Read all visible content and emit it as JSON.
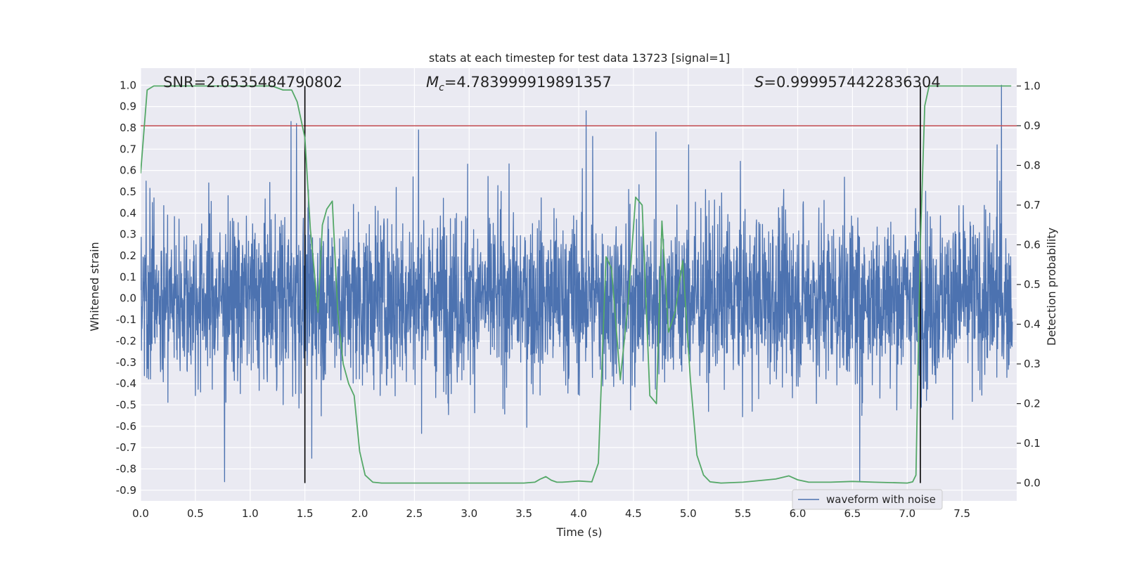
{
  "chart_data": {
    "type": "line",
    "title": "stats at each timestep for test data 13723 [signal=1]",
    "xlabel": "Time (s)",
    "ylabel_left": "Whitened strain",
    "ylabel_right": "Detection probability",
    "xlim": [
      0.0,
      8.0
    ],
    "ylim_left": [
      -0.95,
      1.08
    ],
    "ylim_right": [
      -0.045,
      1.045
    ],
    "x_ticks": [
      "0.0",
      "0.5",
      "1.0",
      "1.5",
      "2.0",
      "2.5",
      "3.0",
      "3.5",
      "4.0",
      "4.5",
      "5.0",
      "5.5",
      "6.0",
      "6.5",
      "7.0",
      "7.5"
    ],
    "y_ticks_left": [
      "1.0",
      "0.9",
      "0.8",
      "0.7",
      "0.6",
      "0.5",
      "0.4",
      "0.3",
      "0.2",
      "0.1",
      "0.0",
      "-0.1",
      "-0.2",
      "-0.3",
      "-0.4",
      "-0.5",
      "-0.6",
      "-0.7",
      "-0.8",
      "-0.9"
    ],
    "y_ticks_right": [
      "1.0",
      "0.9",
      "0.8",
      "0.7",
      "0.6",
      "0.5",
      "0.4",
      "0.3",
      "0.2",
      "0.1",
      "0.0"
    ],
    "grid": true,
    "legend": {
      "location": "lower-center-right",
      "entries": [
        "waveform with noise"
      ]
    },
    "annotations": {
      "snr": "SNR=2.6535484790802",
      "mc_symbol": "M",
      "mc_sub": "c",
      "mc_value": "=4.783999919891357",
      "s_symbol": "S",
      "s_value": "=0.9999574422836304"
    },
    "threshold_line": {
      "axis": "right",
      "y": 0.9,
      "color": "#c44e52"
    },
    "vertical_lines": {
      "x": [
        1.5,
        7.12
      ],
      "y_range_right": [
        0.0,
        1.0
      ],
      "color": "#000000"
    },
    "series": [
      {
        "name": "waveform with noise",
        "axis": "left",
        "color": "#4c72b0",
        "peak_x": [
          0.05,
          0.77,
          1.38,
          1.43,
          1.57,
          2.5,
          2.55,
          3.0,
          4.09,
          4.15,
          4.73,
          5.03,
          6.6,
          7.86,
          7.9
        ],
        "peak_y": [
          0.55,
          -0.86,
          0.83,
          0.82,
          -0.75,
          0.57,
          0.79,
          0.63,
          0.88,
          0.76,
          0.78,
          0.72,
          -0.86,
          0.72,
          1.0
        ]
      },
      {
        "name": "",
        "axis": "right",
        "color": "#55a868",
        "x": [
          0.0,
          0.06,
          0.12,
          0.3,
          0.6,
          0.9,
          1.2,
          1.3,
          1.38,
          1.43,
          1.5,
          1.55,
          1.6,
          1.62,
          1.66,
          1.7,
          1.75,
          1.8,
          1.85,
          1.9,
          1.95,
          2.0,
          2.05,
          2.12,
          2.2,
          2.5,
          3.0,
          3.5,
          3.6,
          3.65,
          3.7,
          3.75,
          3.8,
          3.85,
          3.9,
          4.0,
          4.12,
          4.18,
          4.25,
          4.3,
          4.38,
          4.45,
          4.52,
          4.58,
          4.65,
          4.71,
          4.76,
          4.82,
          4.88,
          4.95,
          5.02,
          5.08,
          5.14,
          5.2,
          5.3,
          5.5,
          5.8,
          5.92,
          6.0,
          6.1,
          6.3,
          6.5,
          6.7,
          7.0,
          7.05,
          7.08,
          7.12,
          7.16,
          7.2,
          7.3,
          7.5,
          7.8,
          7.95
        ],
        "y": [
          0.78,
          0.99,
          1.0,
          1.0,
          1.0,
          1.0,
          1.0,
          0.99,
          0.99,
          0.96,
          0.87,
          0.64,
          0.49,
          0.43,
          0.65,
          0.69,
          0.71,
          0.43,
          0.3,
          0.25,
          0.22,
          0.08,
          0.02,
          0.002,
          0.0,
          0.0,
          0.0,
          0.0,
          0.002,
          0.01,
          0.016,
          0.007,
          0.002,
          0.002,
          0.003,
          0.005,
          0.003,
          0.05,
          0.57,
          0.54,
          0.26,
          0.45,
          0.72,
          0.7,
          0.22,
          0.2,
          0.66,
          0.38,
          0.43,
          0.56,
          0.26,
          0.07,
          0.02,
          0.003,
          0.0,
          0.002,
          0.01,
          0.018,
          0.008,
          0.002,
          0.002,
          0.004,
          0.002,
          0.0,
          0.003,
          0.02,
          0.6,
          0.95,
          1.0,
          1.0,
          1.0,
          1.0,
          1.0
        ]
      }
    ]
  }
}
